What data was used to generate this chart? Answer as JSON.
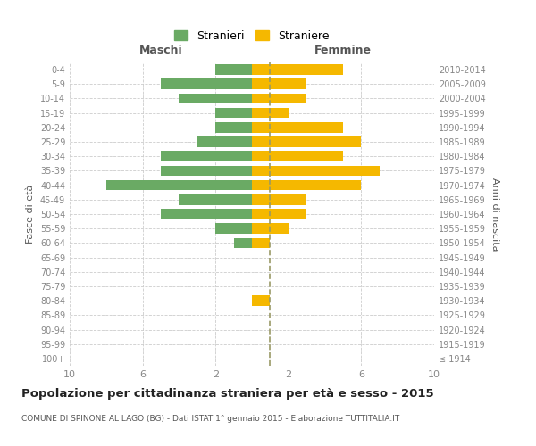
{
  "age_groups": [
    "100+",
    "95-99",
    "90-94",
    "85-89",
    "80-84",
    "75-79",
    "70-74",
    "65-69",
    "60-64",
    "55-59",
    "50-54",
    "45-49",
    "40-44",
    "35-39",
    "30-34",
    "25-29",
    "20-24",
    "15-19",
    "10-14",
    "5-9",
    "0-4"
  ],
  "birth_years": [
    "≤ 1914",
    "1915-1919",
    "1920-1924",
    "1925-1929",
    "1930-1934",
    "1935-1939",
    "1940-1944",
    "1945-1949",
    "1950-1954",
    "1955-1959",
    "1960-1964",
    "1965-1969",
    "1970-1974",
    "1975-1979",
    "1980-1984",
    "1985-1989",
    "1990-1994",
    "1995-1999",
    "2000-2004",
    "2005-2009",
    "2010-2014"
  ],
  "males": [
    0,
    0,
    0,
    0,
    0,
    0,
    0,
    0,
    1,
    2,
    5,
    4,
    8,
    5,
    5,
    3,
    2,
    2,
    4,
    5,
    2
  ],
  "females": [
    0,
    0,
    0,
    0,
    1,
    0,
    0,
    0,
    1,
    2,
    3,
    3,
    6,
    7,
    5,
    6,
    5,
    2,
    3,
    3,
    5
  ],
  "male_color": "#6aaa64",
  "female_color": "#f5b800",
  "background_color": "#ffffff",
  "grid_color": "#cccccc",
  "title": "Popolazione per cittadinanza straniera per età e sesso - 2015",
  "subtitle": "COMUNE DI SPINONE AL LAGO (BG) - Dati ISTAT 1° gennaio 2015 - Elaborazione TUTTITALIA.IT",
  "xlabel_left": "Maschi",
  "xlabel_right": "Femmine",
  "ylabel_left": "Fasce di età",
  "ylabel_right": "Anni di nascita",
  "legend_male": "Stranieri",
  "legend_female": "Straniere",
  "xlim": 10,
  "center_line_color": "#999966",
  "title_fontsize": 9.5,
  "subtitle_fontsize": 6.5
}
